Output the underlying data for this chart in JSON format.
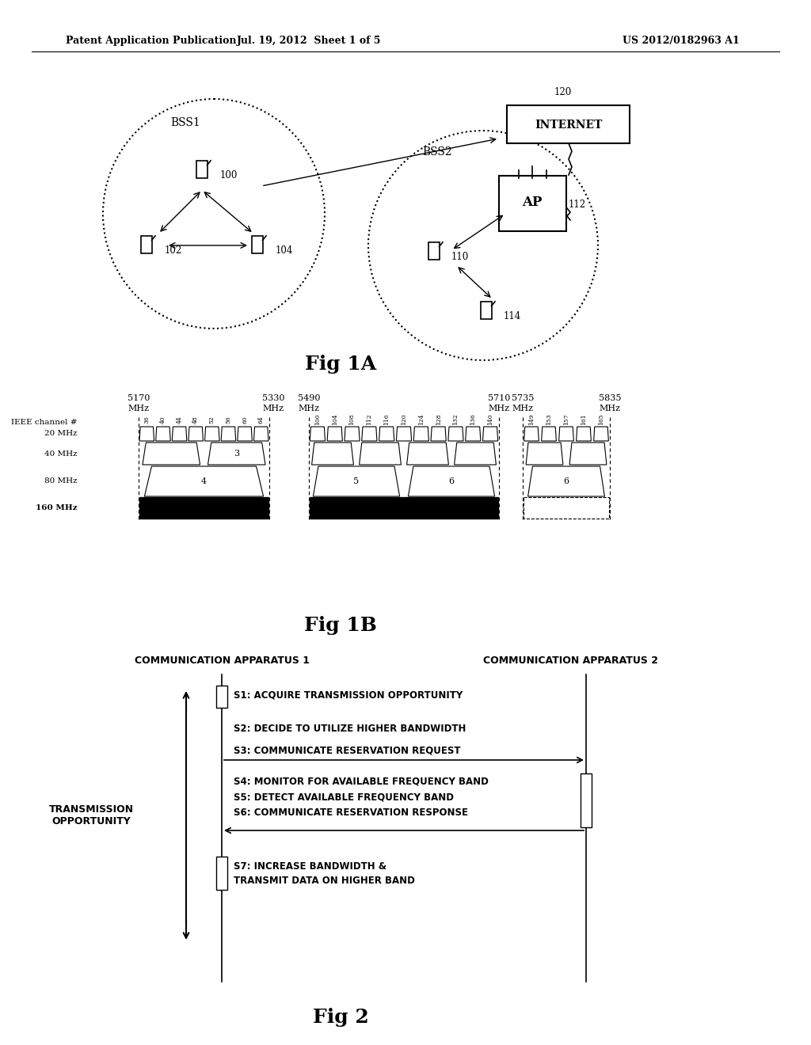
{
  "bg_color": "#ffffff",
  "header_left": "Patent Application Publication",
  "header_mid": "Jul. 19, 2012  Sheet 1 of 5",
  "header_right": "US 2012/0182963 A1",
  "fig1a_label": "Fig 1A",
  "fig1b_label": "Fig 1B",
  "fig2_label": "Fig 2",
  "fig2_title_left": "COMMUNICATION APPARATUS 1",
  "fig2_title_right": "COMMUNICATION APPARATUS 2",
  "fig2_left_label": "TRANSMISSION\nOPPORTUNITY",
  "s1": "S1: ACQUIRE TRANSMISSION OPPORTUNITY",
  "s2": "S2: DECIDE TO UTILIZE HIGHER BANDWIDTH",
  "s3": "S3: COMMUNICATE RESERVATION REQUEST",
  "s4": "S4: MONITOR FOR AVAILABLE FREQUENCY BAND",
  "s5": "S5: DETECT AVAILABLE FREQUENCY BAND",
  "s6": "S6: COMMUNICATE RESERVATION RESPONSE",
  "s7a": "S7: INCREASE BANDWIDTH &",
  "s7b": "TRANSMIT DATA ON HIGHER BAND",
  "ieee_channels_1": [
    "36",
    "40",
    "44",
    "48",
    "52",
    "56",
    "60",
    "64"
  ],
  "ieee_channels_2": [
    "100",
    "104",
    "108",
    "112",
    "116",
    "120",
    "124",
    "128",
    "132",
    "136",
    "140"
  ],
  "ieee_channels_3": [
    "149",
    "153",
    "157",
    "161",
    "165"
  ]
}
